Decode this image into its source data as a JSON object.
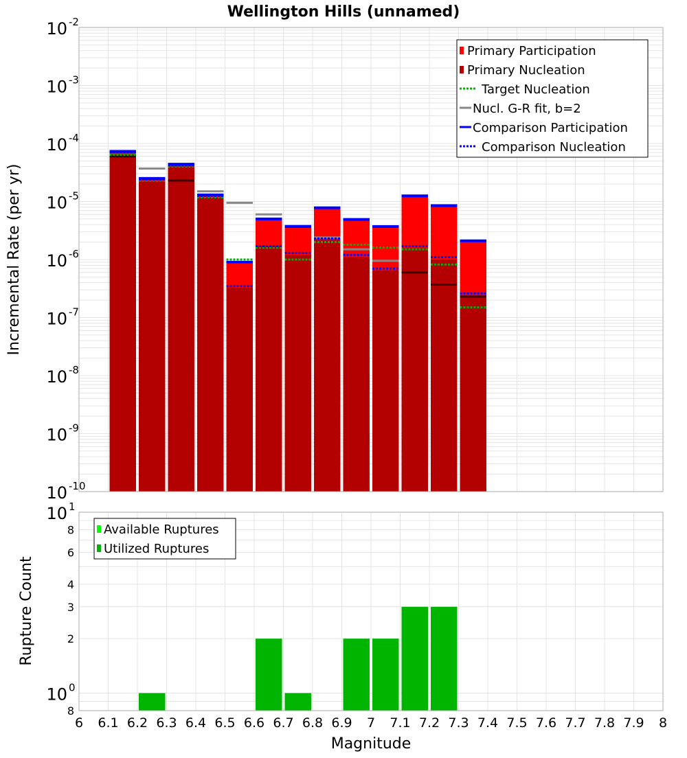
{
  "title": "Wellington Hills (unnamed)",
  "colors": {
    "primary_participation": "#ff0000",
    "primary_nucleation": "#b30000",
    "target_nucleation": "#00b300",
    "gr_fit": "#888888",
    "comparison": "#0000ff",
    "available": "#00ff00",
    "utilized": "#00b400",
    "grid": "#e4e4e4"
  },
  "chart_data": [
    {
      "type": "bar",
      "name": "rate-chart",
      "xlabel": "",
      "ylabel": "Incremental Rate (per yr)",
      "xlim": [
        6,
        8
      ],
      "ylim": [
        1e-10,
        0.01
      ],
      "yscale": "log",
      "grid": true,
      "legend_position": "top-right",
      "y_tick_labels": [
        {
          "exp": -10,
          "base": "10",
          "sup": "-10"
        },
        {
          "exp": -9,
          "base": "10",
          "sup": "-9"
        },
        {
          "exp": -8,
          "base": "10",
          "sup": "-8"
        },
        {
          "exp": -7,
          "base": "10",
          "sup": "-7"
        },
        {
          "exp": -6,
          "base": "10",
          "sup": "-6"
        },
        {
          "exp": -5,
          "base": "10",
          "sup": "-5"
        },
        {
          "exp": -4,
          "base": "10",
          "sup": "-4"
        },
        {
          "exp": -3,
          "base": "10",
          "sup": "-3"
        },
        {
          "exp": -2,
          "base": "10",
          "sup": "-2"
        }
      ],
      "legend": [
        {
          "label": "Primary Participation",
          "style": "bar",
          "color": "#ff0000"
        },
        {
          "label": "Primary Nucleation",
          "style": "bar",
          "color": "#b30000"
        },
        {
          "label": "Target Nucleation",
          "style": "dotted",
          "color": "#00b300"
        },
        {
          "label": "Nucl. G-R fit, b=2",
          "style": "solid",
          "color": "#888888"
        },
        {
          "label": "Comparison Participation",
          "style": "solid",
          "color": "#0000ff"
        },
        {
          "label": "Comparison Nucleation",
          "style": "dotted",
          "color": "#0000ff"
        }
      ],
      "x": [
        6.15,
        6.25,
        6.35,
        6.45,
        6.55,
        6.65,
        6.75,
        6.85,
        6.95,
        7.05,
        7.15,
        7.25,
        7.35
      ],
      "bin_width": 0.1,
      "series": [
        {
          "name": "Primary Participation",
          "values": [
            7e-05,
            2.4e-05,
            4.2e-05,
            1.25e-05,
            8.5e-07,
            4.8e-06,
            3.5e-06,
            7.5e-06,
            4.7e-06,
            3.5e-06,
            1.2e-05,
            8.2e-06,
            2e-06
          ]
        },
        {
          "name": "Primary Nucleation",
          "values": [
            6.5e-05,
            2.2e-05,
            4e-05,
            1.15e-05,
            3.3e-07,
            1.7e-06,
            1.2e-06,
            2.2e-06,
            1.1e-06,
            6.5e-07,
            1.6e-06,
            1e-06,
            2.4e-07
          ]
        },
        {
          "name": "Target Nucleation",
          "values": [
            6.4e-05,
            2.3e-05,
            4e-05,
            1.18e-05,
            1e-06,
            1.6e-06,
            1e-06,
            2e-06,
            1.8e-06,
            1.6e-06,
            1.5e-06,
            8.2e-07,
            1.5e-07
          ]
        },
        {
          "name": "Nucl. G-R fit, b=2",
          "values": [
            6e-05,
            3.7e-05,
            2.3e-05,
            1.5e-05,
            9.5e-06,
            6e-06,
            3.8e-06,
            2.4e-06,
            1.5e-06,
            9.5e-07,
            6e-07,
            3.7e-07,
            2.3e-07
          ]
        },
        {
          "name": "Comparison Participation",
          "values": [
            7.3e-05,
            2.5e-05,
            4.4e-05,
            1.3e-05,
            9e-07,
            5e-06,
            3.7e-06,
            7.8e-06,
            4.9e-06,
            3.7e-06,
            1.25e-05,
            8.5e-06,
            2.1e-06
          ]
        },
        {
          "name": "Comparison Nucleation",
          "values": [
            7.1e-05,
            2.4e-05,
            4.2e-05,
            1.25e-05,
            3.5e-07,
            1.7e-06,
            1.3e-06,
            2.3e-06,
            1.2e-06,
            7e-07,
            1.7e-06,
            1.1e-06,
            2.6e-07
          ]
        }
      ]
    },
    {
      "type": "bar",
      "name": "count-chart",
      "xlabel": "Magnitude",
      "ylabel": "Rupture Count",
      "xlim": [
        6,
        8
      ],
      "ylim": [
        0.8,
        10
      ],
      "yscale": "log",
      "grid": true,
      "legend_position": "top-left",
      "x_tick_labels": [
        "6",
        "6.1",
        "6.2",
        "6.3",
        "6.4",
        "6.5",
        "6.6",
        "6.7",
        "6.8",
        "6.9",
        "7",
        "7.1",
        "7.2",
        "7.3",
        "7.4",
        "7.5",
        "7.6",
        "7.7",
        "7.8",
        "7.9",
        "8"
      ],
      "x_ticks": [
        6.0,
        6.1,
        6.2,
        6.3,
        6.4,
        6.5,
        6.6,
        6.7,
        6.8,
        6.9,
        7.0,
        7.1,
        7.2,
        7.3,
        7.4,
        7.5,
        7.6,
        7.7,
        7.8,
        7.9,
        8.0
      ],
      "y_tick_labels": [
        {
          "value": 0.8,
          "label": "8",
          "sup": ""
        },
        {
          "value": 1,
          "label": "10",
          "sup": "0"
        },
        {
          "value": 2,
          "label": "2",
          "sup": ""
        },
        {
          "value": 3,
          "label": "3",
          "sup": ""
        },
        {
          "value": 4,
          "label": "4",
          "sup": ""
        },
        {
          "value": 6,
          "label": "6",
          "sup": ""
        },
        {
          "value": 8,
          "label": "8",
          "sup": ""
        },
        {
          "value": 10,
          "label": "10",
          "sup": "1"
        }
      ],
      "legend": [
        {
          "label": "Available Ruptures",
          "style": "bar",
          "color": "#00ff00"
        },
        {
          "label": "Utilized Ruptures",
          "style": "bar",
          "color": "#00b400"
        }
      ],
      "x": [
        6.25,
        6.65,
        6.75,
        6.95,
        7.05,
        7.15,
        7.25
      ],
      "bin_width": 0.1,
      "series": [
        {
          "name": "Utilized Ruptures",
          "values": [
            1,
            2,
            1,
            2,
            2,
            3,
            3
          ]
        }
      ]
    }
  ]
}
